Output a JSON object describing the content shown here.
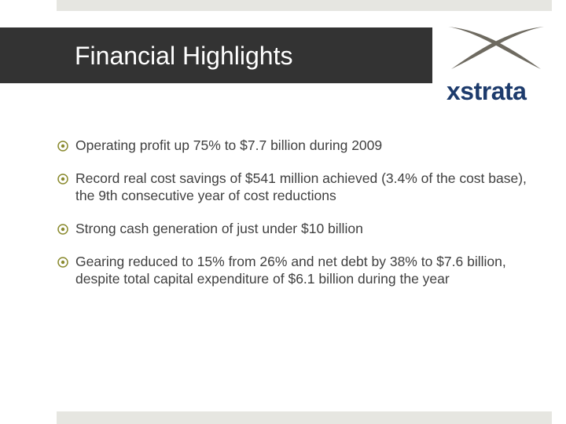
{
  "slide": {
    "title": "Financial Highlights"
  },
  "logo": {
    "text": "xstrata",
    "mark_color": "#6e6a60",
    "text_color": "#1d3b6c"
  },
  "bullets": [
    {
      "icon": "target-bullet-icon",
      "text": "Operating profit up 75% to $7.7 billion during 2009"
    },
    {
      "icon": "target-bullet-icon",
      "text": "Record real cost savings of $541 million achieved (3.4% of the cost base), the 9th consecutive year of cost reductions"
    },
    {
      "icon": "target-bullet-icon",
      "text": "Strong cash generation of just under $10 billion"
    },
    {
      "icon": "target-bullet-icon",
      "text": "Gearing reduced to 15% from 26% and net debt by 38% to $7.6 billion, despite total capital expenditure of $6.1 billion during the year"
    }
  ],
  "colors": {
    "title_band": "#333333",
    "accent_bars": "#e6e6e1",
    "bullet_icon": "#8a8a2e",
    "body_text": "#404040"
  }
}
